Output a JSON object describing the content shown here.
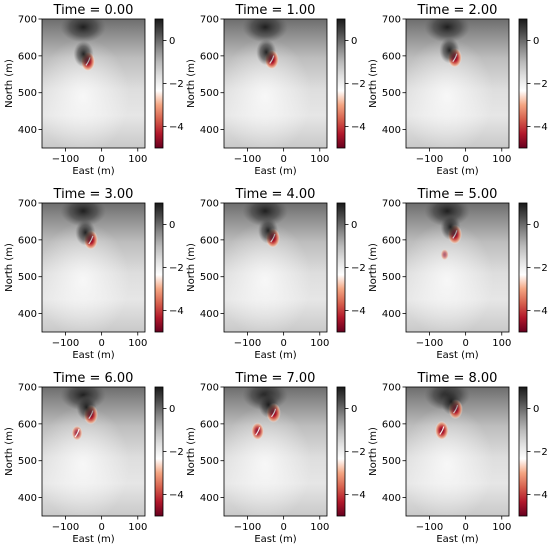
{
  "chart_data": {
    "type": "heatmap",
    "layout": "3x3 grid of map panels, each with its own vertical colorbar",
    "colormap": "diverging red-white-gray-black (RdGy reversed)",
    "colormap_stops": [
      "#67001f",
      "#b2182b",
      "#d6604d",
      "#f4a582",
      "#ffffff",
      "#e0e0e0",
      "#bababa",
      "#878787",
      "#4d4d4d",
      "#1a1a1a"
    ],
    "xlabel": "East (m)",
    "ylabel": "North (m)",
    "xlim": [
      -165,
      120
    ],
    "ylim": [
      350,
      700
    ],
    "xticks": [
      -100,
      0,
      100
    ],
    "yticks": [
      400,
      500,
      600,
      700
    ],
    "colorbar_range": [
      -5,
      1
    ],
    "colorbar_ticks": [
      0,
      -2,
      -4
    ],
    "colorbar_tick_labels": [
      "0",
      "−2",
      "−4"
    ],
    "panels": [
      {
        "title": "Time = 0.00",
        "features": [
          {
            "kind": "min",
            "east": -38,
            "north": 585,
            "value": -4.8
          },
          {
            "kind": "max",
            "east": -50,
            "north": 605,
            "value": 1.0
          }
        ]
      },
      {
        "title": "Time = 1.00",
        "features": [
          {
            "kind": "min",
            "east": -33,
            "north": 590,
            "value": -4.8
          },
          {
            "kind": "max",
            "east": -48,
            "north": 610,
            "value": 1.0
          }
        ]
      },
      {
        "title": "Time = 2.00",
        "features": [
          {
            "kind": "min",
            "east": -30,
            "north": 595,
            "value": -4.8
          },
          {
            "kind": "max",
            "east": -45,
            "north": 615,
            "value": 1.0
          }
        ]
      },
      {
        "title": "Time = 3.00",
        "features": [
          {
            "kind": "min",
            "east": -30,
            "north": 600,
            "value": -4.8
          },
          {
            "kind": "max",
            "east": -45,
            "north": 620,
            "value": 1.0
          }
        ]
      },
      {
        "title": "Time = 4.00",
        "features": [
          {
            "kind": "min",
            "east": -30,
            "north": 605,
            "value": -4.8
          },
          {
            "kind": "max",
            "east": -43,
            "north": 625,
            "value": 1.0
          }
        ]
      },
      {
        "title": "Time = 5.00",
        "features": [
          {
            "kind": "min",
            "east": -30,
            "north": 615,
            "value": -4.8
          },
          {
            "kind": "min",
            "east": -58,
            "north": 560,
            "value": -1.5
          },
          {
            "kind": "max",
            "east": -42,
            "north": 635,
            "value": 1.0
          }
        ]
      },
      {
        "title": "Time = 6.00",
        "features": [
          {
            "kind": "min",
            "east": -30,
            "north": 625,
            "value": -4.8
          },
          {
            "kind": "min",
            "east": -68,
            "north": 575,
            "value": -3.0
          },
          {
            "kind": "max",
            "east": -42,
            "north": 645,
            "value": 1.0
          }
        ]
      },
      {
        "title": "Time = 7.00",
        "features": [
          {
            "kind": "min",
            "east": -28,
            "north": 630,
            "value": -4.8
          },
          {
            "kind": "min",
            "east": -72,
            "north": 580,
            "value": -4.0
          },
          {
            "kind": "max",
            "east": -42,
            "north": 652,
            "value": 1.0
          }
        ]
      },
      {
        "title": "Time = 8.00",
        "features": [
          {
            "kind": "min",
            "east": -28,
            "north": 640,
            "value": -4.8
          },
          {
            "kind": "min",
            "east": -66,
            "north": 582,
            "value": -4.5
          },
          {
            "kind": "max",
            "east": -40,
            "north": 660,
            "value": 1.0
          }
        ]
      }
    ]
  }
}
